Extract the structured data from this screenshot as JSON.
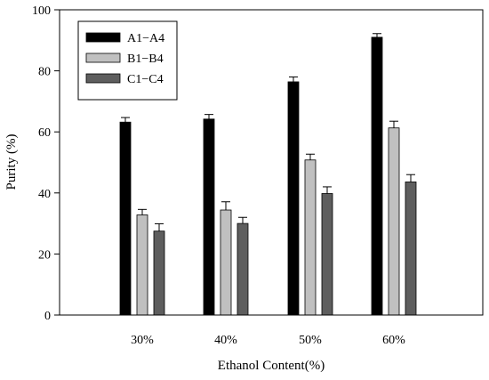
{
  "chart_data": {
    "type": "bar",
    "categories": [
      "30%",
      "40%",
      "50%",
      "60%"
    ],
    "series": [
      {
        "name": "A1−A4",
        "color": "#000000",
        "values": [
          63.2,
          64.2,
          76.4,
          91.0
        ],
        "errors": [
          1.5,
          1.5,
          1.6,
          1.2
        ]
      },
      {
        "name": "B1−B4",
        "color": "#c0c0c0",
        "values": [
          32.8,
          34.4,
          50.8,
          61.3
        ],
        "errors": [
          1.8,
          2.7,
          1.9,
          2.2
        ]
      },
      {
        "name": "C1−C4",
        "color": "#5e5e5e",
        "values": [
          27.5,
          30.0,
          39.8,
          43.6
        ],
        "errors": [
          2.4,
          2.0,
          2.2,
          2.4
        ]
      }
    ],
    "xlabel": "Ethanol Content(%)",
    "ylabel": "Purity (%)",
    "ylim": [
      0,
      100
    ],
    "yticks": [
      0,
      20,
      40,
      60,
      80,
      100
    ],
    "error_bars": true,
    "grid": false,
    "legend_position": "top-left"
  }
}
